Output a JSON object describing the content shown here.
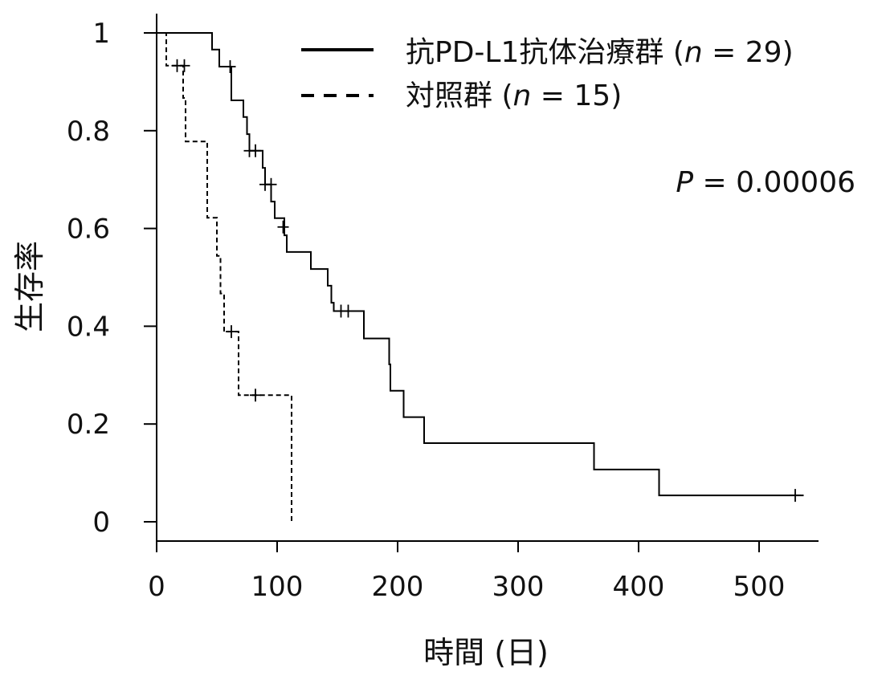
{
  "chart_data": {
    "type": "line",
    "subtype": "kaplan-meier",
    "title": "",
    "xlabel": "時間 (日)",
    "ylabel": "生存率",
    "xlim": [
      0,
      550
    ],
    "ylim": [
      0,
      1.04
    ],
    "x_ticks": [
      0,
      100,
      200,
      300,
      400,
      500
    ],
    "y_ticks": [
      0,
      0.2,
      0.4,
      0.6,
      0.8,
      1
    ],
    "y_tick_labels": [
      "0",
      "0.2",
      "0.4",
      "0.6",
      "0.8",
      "1"
    ],
    "grid": false,
    "legend_position": "top-right",
    "annotation": {
      "prefix": "P",
      "text": " = 0.00006"
    },
    "series": [
      {
        "name": "抗PD-L1抗体治療群 (n = 29)",
        "legend_label": "抗PD-L1抗体治療群 (",
        "legend_n": "n",
        "legend_suffix": " = 29)",
        "style": "solid",
        "steps": [
          [
            0,
            1.0
          ],
          [
            46,
            0.966
          ],
          [
            52,
            0.931
          ],
          [
            62,
            0.862
          ],
          [
            72,
            0.828
          ],
          [
            75,
            0.793
          ],
          [
            77,
            0.759
          ],
          [
            88,
            0.724
          ],
          [
            90,
            0.69
          ],
          [
            95,
            0.655
          ],
          [
            98,
            0.621
          ],
          [
            106,
            0.586
          ],
          [
            108,
            0.552
          ],
          [
            128,
            0.517
          ],
          [
            142,
            0.483
          ],
          [
            145,
            0.448
          ],
          [
            147,
            0.431
          ],
          [
            172,
            0.375
          ],
          [
            193,
            0.322
          ],
          [
            194,
            0.268
          ],
          [
            205,
            0.214
          ],
          [
            222,
            0.161
          ],
          [
            363,
            0.107
          ],
          [
            417,
            0.054
          ],
          [
            537,
            0.054
          ]
        ],
        "censors": [
          [
            61,
            0.931
          ],
          [
            77,
            0.759
          ],
          [
            82,
            0.759
          ],
          [
            90,
            0.69
          ],
          [
            95,
            0.69
          ],
          [
            105,
            0.603
          ],
          [
            153,
            0.431
          ],
          [
            159,
            0.431
          ],
          [
            530,
            0.054
          ]
        ]
      },
      {
        "name": "対照群 (n = 15)",
        "legend_label": "対照群 (",
        "legend_n": "n",
        "legend_suffix": " = 15)",
        "style": "dashed",
        "steps": [
          [
            0,
            1.0
          ],
          [
            8,
            0.933
          ],
          [
            22,
            0.867
          ],
          [
            24,
            0.778
          ],
          [
            42,
            0.622
          ],
          [
            50,
            0.544
          ],
          [
            53,
            0.467
          ],
          [
            56,
            0.389
          ],
          [
            68,
            0.259
          ],
          [
            112,
            0.0
          ]
        ],
        "censors": [
          [
            17,
            0.933
          ],
          [
            23,
            0.933
          ],
          [
            62,
            0.389
          ],
          [
            82,
            0.259
          ]
        ]
      }
    ]
  }
}
